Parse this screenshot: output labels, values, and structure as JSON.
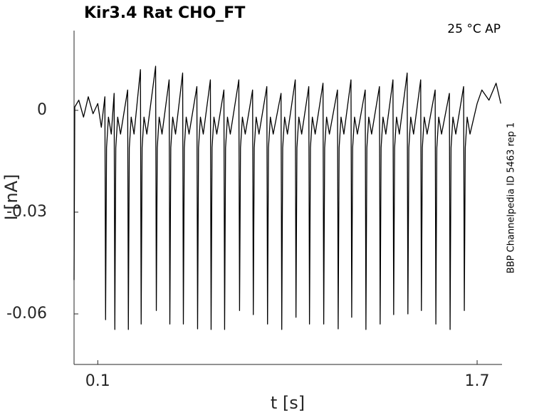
{
  "chart_data": {
    "type": "line",
    "title": "Kir3.4  Rat  CHO_FT",
    "annotation": "25 °C  AP",
    "side_note": "BBP Channelpedia ID 5463 rep 1",
    "x_label": "t [s]",
    "y_label": "I [nA]",
    "xlim": [
      0,
      1.805
    ],
    "ylim": [
      -0.0749,
      0.0235
    ],
    "xticks": [
      0.1,
      1.7
    ],
    "yticks": [
      0,
      -0.03,
      -0.06
    ],
    "grid": false,
    "color": "#000000",
    "x": [
      0,
      0.003,
      0.02,
      0.04,
      0.06,
      0.08,
      0.1,
      0.115,
      0.13,
      0.133,
      0.137,
      0.145,
      0.157,
      0.169,
      0.172,
      0.176,
      0.184,
      0.196,
      0.226,
      0.229,
      0.233,
      0.241,
      0.253,
      0.28,
      0.283,
      0.287,
      0.295,
      0.307,
      0.344,
      0.347,
      0.351,
      0.359,
      0.371,
      0.401,
      0.404,
      0.408,
      0.416,
      0.428,
      0.458,
      0.461,
      0.465,
      0.473,
      0.485,
      0.518,
      0.521,
      0.525,
      0.533,
      0.545,
      0.575,
      0.578,
      0.582,
      0.59,
      0.602,
      0.632,
      0.635,
      0.639,
      0.647,
      0.659,
      0.695,
      0.698,
      0.702,
      0.71,
      0.722,
      0.753,
      0.756,
      0.76,
      0.768,
      0.78,
      0.813,
      0.816,
      0.82,
      0.828,
      0.84,
      0.873,
      0.876,
      0.88,
      0.888,
      0.9,
      0.933,
      0.936,
      0.94,
      0.948,
      0.96,
      0.99,
      0.993,
      0.997,
      1.005,
      1.017,
      1.05,
      1.053,
      1.057,
      1.065,
      1.077,
      1.111,
      1.114,
      1.118,
      1.126,
      1.138,
      1.168,
      1.171,
      1.175,
      1.183,
      1.195,
      1.228,
      1.231,
      1.235,
      1.243,
      1.255,
      1.288,
      1.291,
      1.295,
      1.303,
      1.315,
      1.345,
      1.348,
      1.352,
      1.36,
      1.372,
      1.405,
      1.408,
      1.412,
      1.42,
      1.432,
      1.462,
      1.465,
      1.469,
      1.477,
      1.489,
      1.523,
      1.526,
      1.53,
      1.538,
      1.55,
      1.583,
      1.586,
      1.59,
      1.598,
      1.61,
      1.643,
      1.646,
      1.65,
      1.658,
      1.67,
      1.68,
      1.7,
      1.72,
      1.75,
      1.78,
      1.8
    ],
    "values": [
      -0.05,
      0.001,
      0.003,
      -0.002,
      0.004,
      -0.001,
      0.002,
      -0.005,
      0.004,
      -0.0617,
      -0.011,
      -0.002,
      -0.007,
      0.005,
      -0.0646,
      -0.011,
      -0.002,
      -0.007,
      0.006,
      -0.0646,
      -0.011,
      -0.002,
      -0.007,
      0.012,
      -0.063,
      -0.011,
      -0.002,
      -0.007,
      0.013,
      -0.059,
      -0.011,
      -0.002,
      -0.007,
      0.009,
      -0.063,
      -0.011,
      -0.002,
      -0.007,
      0.011,
      -0.063,
      -0.011,
      -0.002,
      -0.007,
      0.007,
      -0.0644,
      -0.011,
      -0.002,
      -0.007,
      0.009,
      -0.0646,
      -0.011,
      -0.002,
      -0.007,
      0.006,
      -0.0646,
      -0.011,
      -0.002,
      -0.007,
      0.009,
      -0.059,
      -0.011,
      -0.002,
      -0.007,
      0.006,
      -0.0602,
      -0.011,
      -0.002,
      -0.007,
      0.007,
      -0.063,
      -0.011,
      -0.002,
      -0.007,
      0.005,
      -0.0646,
      -0.011,
      -0.002,
      -0.007,
      0.009,
      -0.061,
      -0.011,
      -0.002,
      -0.007,
      0.007,
      -0.063,
      -0.011,
      -0.002,
      -0.007,
      0.008,
      -0.063,
      -0.011,
      -0.002,
      -0.007,
      0.006,
      -0.0644,
      -0.011,
      -0.002,
      -0.007,
      0.009,
      -0.061,
      -0.011,
      -0.002,
      -0.007,
      0.006,
      -0.0646,
      -0.011,
      -0.002,
      -0.007,
      0.007,
      -0.063,
      -0.011,
      -0.002,
      -0.007,
      0.009,
      -0.0602,
      -0.011,
      -0.002,
      -0.007,
      0.011,
      -0.06,
      -0.011,
      -0.002,
      -0.007,
      0.009,
      -0.059,
      -0.011,
      -0.002,
      -0.007,
      0.006,
      -0.063,
      -0.011,
      -0.002,
      -0.007,
      0.005,
      -0.0646,
      -0.011,
      -0.002,
      -0.007,
      0.007,
      -0.059,
      -0.011,
      -0.002,
      -0.007,
      -0.004,
      0.002,
      0.006,
      0.003,
      0.008,
      0.002
    ]
  }
}
